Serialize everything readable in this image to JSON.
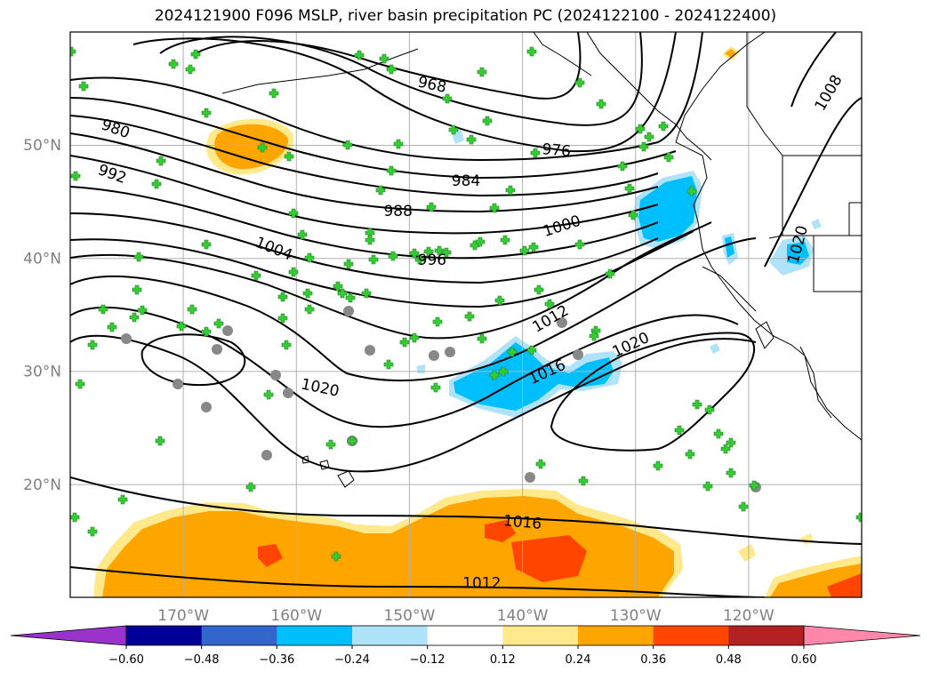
{
  "title": "2024121900 F096 MSLP, river basin precipitation PC (2024122100 - 2024122400)",
  "map": {
    "lon_range": [
      -180,
      -110
    ],
    "lat_range": [
      10,
      60
    ],
    "lat_ticks": [
      {
        "value": 20,
        "label": "20°N"
      },
      {
        "value": 30,
        "label": "30°N"
      },
      {
        "value": 40,
        "label": "40°N"
      },
      {
        "value": 50,
        "label": "50°N"
      }
    ],
    "lon_ticks": [
      {
        "value": -170,
        "label": "170°W"
      },
      {
        "value": -160,
        "label": "160°W"
      },
      {
        "value": -150,
        "label": "150°W"
      },
      {
        "value": -140,
        "label": "140°W"
      },
      {
        "value": -130,
        "label": "130°W"
      },
      {
        "value": -120,
        "label": "120°W"
      }
    ],
    "grid": true,
    "mslp_contours": [
      {
        "label": "968",
        "lon": -148,
        "lat": 55.3,
        "angle": 12
      },
      {
        "label": "976",
        "lon": -137,
        "lat": 49.5,
        "angle": 5
      },
      {
        "label": "980",
        "lon": -176,
        "lat": 51.4,
        "angle": 20
      },
      {
        "label": "984",
        "lon": -145,
        "lat": 46.8,
        "angle": 0
      },
      {
        "label": "988",
        "lon": -151,
        "lat": 44.1,
        "angle": 0
      },
      {
        "label": "992",
        "lon": -176.3,
        "lat": 47.4,
        "angle": 20
      },
      {
        "label": "996",
        "lon": -148,
        "lat": 39.8,
        "angle": 0
      },
      {
        "label": "1000",
        "lon": -136.5,
        "lat": 42.8,
        "angle": -18
      },
      {
        "label": "1004",
        "lon": -162,
        "lat": 40.8,
        "angle": 22
      },
      {
        "label": "1012",
        "lon": -137.5,
        "lat": 34.6,
        "angle": -30
      },
      {
        "label": "1016",
        "lon": -137.8,
        "lat": 29.9,
        "angle": -25
      },
      {
        "label": "1016",
        "lon": -140,
        "lat": 16.6,
        "angle": 5
      },
      {
        "label": "1012",
        "lon": -143.6,
        "lat": 11.2,
        "angle": 0
      },
      {
        "label": "1020",
        "lon": -157.9,
        "lat": 28.5,
        "angle": 12
      },
      {
        "label": "1020",
        "lon": -130.4,
        "lat": 32.3,
        "angle": -25
      },
      {
        "label": "1020",
        "lon": -115.6,
        "lat": 41.2,
        "angle": -75
      },
      {
        "label": "1008",
        "lon": -112.9,
        "lat": 54.6,
        "angle": -60
      }
    ],
    "station_marker_colors": {
      "positive": "#33cc33",
      "neutral": "#888888"
    }
  },
  "colorbar": {
    "colors": [
      "#9933cc",
      "#000099",
      "#3366cc",
      "#00bfff",
      "#aee3fa",
      "#ffffff",
      "#ffe98a",
      "#ffa500",
      "#ff4500",
      "#b22222",
      "#ff88aa"
    ],
    "labels": [
      "−0.60",
      "−0.48",
      "−0.36",
      "−0.24",
      "−0.12",
      "0.12",
      "0.24",
      "0.36",
      "0.48",
      "0.60"
    ],
    "extend": "both"
  }
}
